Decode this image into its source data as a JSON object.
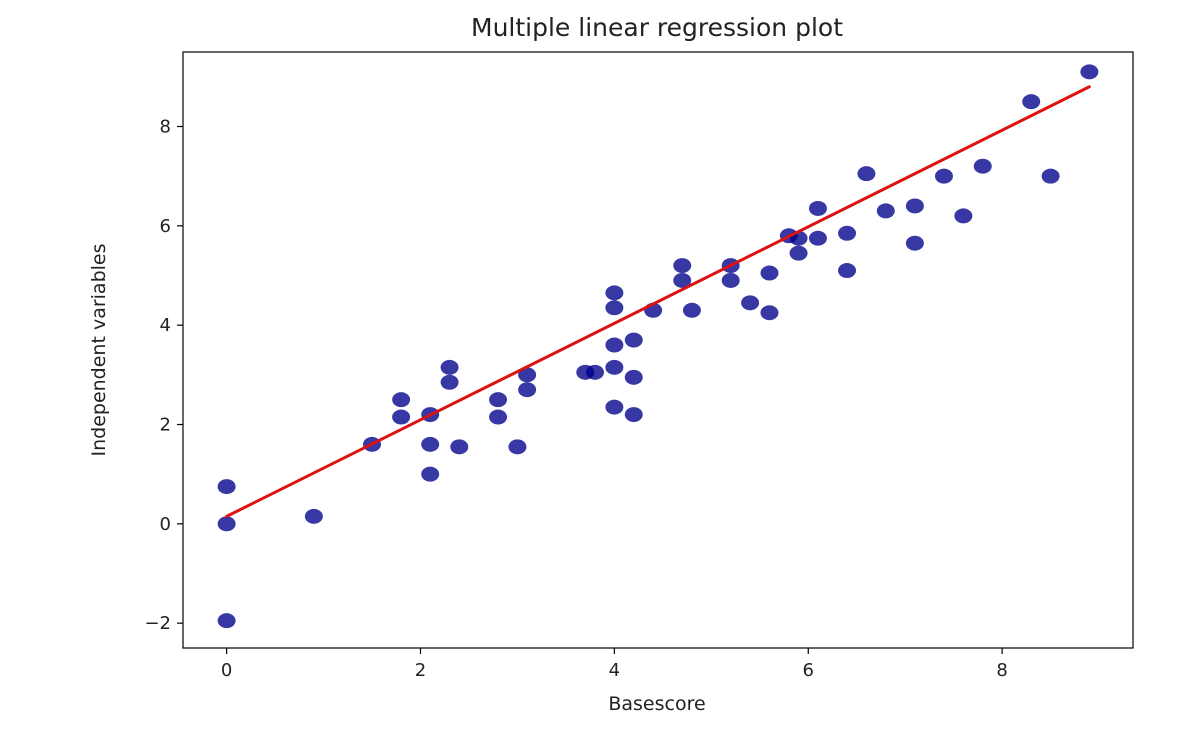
{
  "chart_data": {
    "type": "scatter",
    "title": "Multiple linear regression plot",
    "xlabel": "Basescore",
    "ylabel": "Independent variables",
    "xlim": [
      -0.45,
      9.35
    ],
    "ylim": [
      -2.5,
      9.5
    ],
    "xticks": [
      0,
      2,
      4,
      6,
      8
    ],
    "yticks": [
      -2,
      0,
      2,
      4,
      6,
      8
    ],
    "xtick_labels": [
      "0",
      "2",
      "4",
      "6",
      "8"
    ],
    "ytick_labels": [
      "−2",
      "0",
      "2",
      "4",
      "6",
      "8"
    ],
    "grid": false,
    "marker_color": "#00008b",
    "line_color": "#dd1111",
    "points": [
      [
        0,
        0.75
      ],
      [
        0,
        0.0
      ],
      [
        0,
        -1.95
      ],
      [
        0.9,
        0.15
      ],
      [
        1.5,
        1.6
      ],
      [
        1.8,
        2.5
      ],
      [
        1.8,
        2.15
      ],
      [
        2.1,
        2.2
      ],
      [
        2.1,
        1.6
      ],
      [
        2.1,
        1.0
      ],
      [
        2.3,
        3.15
      ],
      [
        2.3,
        2.85
      ],
      [
        2.4,
        1.55
      ],
      [
        2.8,
        2.5
      ],
      [
        2.8,
        2.15
      ],
      [
        3.0,
        1.55
      ],
      [
        3.1,
        3.0
      ],
      [
        3.1,
        2.7
      ],
      [
        3.7,
        3.05
      ],
      [
        3.8,
        3.05
      ],
      [
        4.0,
        4.65
      ],
      [
        4.0,
        4.35
      ],
      [
        4.0,
        3.6
      ],
      [
        4.0,
        3.15
      ],
      [
        4.0,
        2.35
      ],
      [
        4.2,
        3.7
      ],
      [
        4.2,
        2.95
      ],
      [
        4.2,
        2.2
      ],
      [
        4.4,
        4.3
      ],
      [
        4.7,
        5.2
      ],
      [
        4.7,
        4.9
      ],
      [
        4.8,
        4.3
      ],
      [
        5.2,
        5.2
      ],
      [
        5.2,
        4.9
      ],
      [
        5.4,
        4.45
      ],
      [
        5.6,
        5.05
      ],
      [
        5.6,
        4.25
      ],
      [
        5.8,
        5.8
      ],
      [
        5.9,
        5.75
      ],
      [
        5.9,
        5.45
      ],
      [
        6.1,
        6.35
      ],
      [
        6.1,
        5.75
      ],
      [
        6.4,
        5.85
      ],
      [
        6.4,
        5.1
      ],
      [
        6.6,
        7.05
      ],
      [
        6.8,
        6.3
      ],
      [
        7.1,
        6.4
      ],
      [
        7.1,
        5.65
      ],
      [
        7.4,
        7.0
      ],
      [
        7.6,
        6.2
      ],
      [
        7.8,
        7.2
      ],
      [
        8.3,
        8.5
      ],
      [
        8.5,
        7.0
      ],
      [
        8.9,
        9.1
      ]
    ],
    "regression_line": {
      "x": [
        0,
        8.9
      ],
      "y": [
        0.15,
        8.8
      ]
    }
  }
}
